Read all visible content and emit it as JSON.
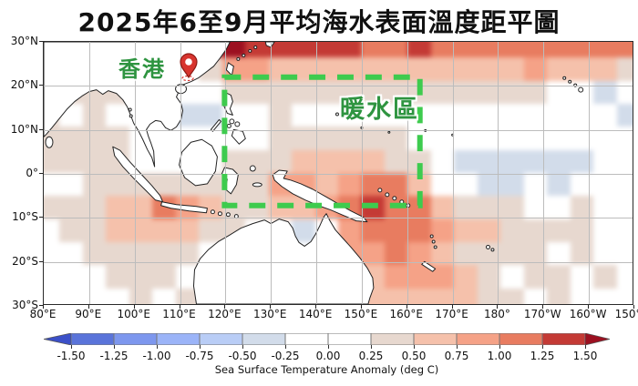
{
  "title": "2025年6至9月平均海水表面溫度距平圖",
  "annotations": {
    "hong_kong_label": "香港",
    "warm_area_label": "暖水區"
  },
  "colors": {
    "scale": [
      "#3b50c8",
      "#5a74da",
      "#7d97ee",
      "#9bb4f8",
      "#b9cdf6",
      "#d2dcea",
      "#ffffff",
      "#ffffff",
      "#e7d8cf",
      "#f5c1ab",
      "#f5a287",
      "#e87c60",
      "#c43a35",
      "#9c1020"
    ],
    "grid_line": "#bcbcbc",
    "land_fill": "#ffffff",
    "coastline": "#222222",
    "annotation_green": "#2e9440",
    "box_green": "#3ecb4e",
    "pin_red": "#d7342e"
  },
  "colorbar": {
    "tick_labels": [
      "-1.50",
      "-1.25",
      "-1.00",
      "-0.75",
      "-0.50",
      "-0.25",
      "0.00",
      "0.25",
      "0.50",
      "0.75",
      "1.00",
      "1.25",
      "1.50"
    ],
    "label": "Sea Surface Temperature Anomaly (deg C)"
  },
  "chart_data": {
    "type": "heatmap",
    "title": "2025年6至9月平均海水表面溫度距平圖",
    "units": "deg C",
    "colorbar_label": "Sea Surface Temperature Anomaly (deg C)",
    "lon_range_deg_east": [
      80,
      210
    ],
    "lat_range": [
      -30,
      30
    ],
    "lon_tick_labels": [
      "80°E",
      "90°E",
      "100°E",
      "110°E",
      "120°E",
      "130°E",
      "140°E",
      "150°E",
      "160°E",
      "170°E",
      "180°",
      "170°W",
      "160°W",
      "150°W"
    ],
    "lat_tick_labels": [
      "30°N",
      "20°N",
      "10°N",
      "0°",
      "10°S",
      "20°S",
      "30°S"
    ],
    "levels": [
      -1.5,
      -1.25,
      -1.0,
      -0.75,
      -0.5,
      -0.25,
      0,
      0.25,
      0.5,
      0.75,
      1.0,
      1.25,
      1.5
    ],
    "colorbar_range": [
      -1.5,
      1.5
    ],
    "grid_on": true,
    "cell_size_deg": 5,
    "grid_rows_north_to_south": [
      [
        0.3,
        0.3,
        0.3,
        0.4,
        0.5,
        0.6,
        0.9,
        1.3,
        1.6,
        1.45,
        1.35,
        1.3,
        1.3,
        1.25,
        1.2,
        1.2,
        1.3,
        1.2,
        1.2,
        1.15,
        1.2,
        1.1,
        1.2,
        1.1,
        1.0,
        1.1
      ],
      [
        0.4,
        0.4,
        0.4,
        0.4,
        0.3,
        0.2,
        0.1,
        0.3,
        0.9,
        0.8,
        0.7,
        0.6,
        0.6,
        0.5,
        0.5,
        0.6,
        0.5,
        0.6,
        0.7,
        0.6,
        0.7,
        0.8,
        0.7,
        0.6,
        0.5,
        0.4
      ],
      [
        0.3,
        0.3,
        0.4,
        0.3,
        0.2,
        0.1,
        0.0,
        -0.1,
        0.3,
        0.4,
        0.4,
        0.3,
        0.3,
        0.3,
        0.3,
        0.3,
        0.3,
        0.4,
        0.3,
        0.3,
        0.3,
        0.4,
        0.2,
        0.1,
        -0.3,
        0.0
      ],
      [
        0.3,
        0.2,
        0.3,
        0.2,
        0.1,
        0.0,
        -0.4,
        -0.3,
        0.1,
        0.2,
        0.3,
        0.2,
        0.2,
        0.2,
        0.2,
        0.1,
        0.2,
        0.2,
        0.1,
        0.1,
        0.1,
        0.1,
        0.0,
        -0.2,
        -0.1,
        -0.3
      ],
      [
        0.4,
        0.3,
        0.3,
        0.3,
        0.2,
        0.1,
        0.1,
        0.0,
        0.1,
        0.2,
        0.3,
        0.3,
        0.4,
        0.4,
        0.3,
        0.3,
        0.2,
        0.2,
        0.1,
        0.0,
        0.0,
        0.1,
        0.1,
        0.0,
        0.1,
        0.1
      ],
      [
        0.4,
        0.4,
        0.3,
        0.3,
        0.2,
        0.2,
        0.2,
        0.2,
        0.3,
        0.3,
        0.4,
        0.5,
        0.5,
        0.6,
        0.5,
        0.4,
        0.3,
        0.0,
        -0.4,
        -0.4,
        -0.4,
        -0.3,
        -0.4,
        -0.3,
        0.0,
        -0.1
      ],
      [
        0.2,
        0.2,
        0.3,
        0.3,
        0.3,
        0.4,
        0.3,
        0.3,
        0.4,
        0.4,
        0.9,
        0.8,
        0.7,
        0.9,
        1.0,
        1.0,
        0.7,
        0.2,
        -0.2,
        -0.3,
        -0.3,
        -0.2,
        -0.3,
        -0.2,
        0.0,
        0.0
      ],
      [
        0.3,
        0.4,
        0.4,
        0.5,
        0.7,
        1.0,
        0.8,
        0.5,
        0.4,
        0.4,
        0.5,
        0.6,
        0.8,
        1.2,
        1.3,
        1.2,
        1.0,
        0.7,
        0.4,
        0.3,
        0.3,
        0.2,
        0.2,
        0.3,
        0.2,
        0.1
      ],
      [
        0.2,
        0.3,
        0.4,
        0.5,
        0.6,
        0.6,
        0.5,
        0.4,
        0.3,
        0.2,
        0.1,
        -0.3,
        0.2,
        0.9,
        1.1,
        1.0,
        1.0,
        0.9,
        0.7,
        0.5,
        0.4,
        0.3,
        0.3,
        0.3,
        0.2,
        0.2
      ],
      [
        0.1,
        0.2,
        0.3,
        0.3,
        0.4,
        0.4,
        0.3,
        0.2,
        0.1,
        0.1,
        0.1,
        0.1,
        0.1,
        0.8,
        0.9,
        1.0,
        0.9,
        0.7,
        0.4,
        0.3,
        0.4,
        0.3,
        0.2,
        0.3,
        0.2,
        0.1
      ],
      [
        0.1,
        0.1,
        0.2,
        0.3,
        0.3,
        0.3,
        0.2,
        0.1,
        0.1,
        0.1,
        0.1,
        0.1,
        0.1,
        0.1,
        0.7,
        0.8,
        0.9,
        0.8,
        0.6,
        0.3,
        0.2,
        0.3,
        0.4,
        0.2,
        0.3,
        0.1
      ],
      [
        0.2,
        0.1,
        0.2,
        0.2,
        0.3,
        0.2,
        0.3,
        0.1,
        0.1,
        0.1,
        0.1,
        0.1,
        0.1,
        0.1,
        0.5,
        0.6,
        0.7,
        0.6,
        0.5,
        0.4,
        0.3,
        0.2,
        0.3,
        0.1,
        -0.1,
        0.2
      ]
    ],
    "highlight_box": {
      "label": "暖水區",
      "lon_min_deg_east": 120,
      "lon_max_deg_east": 163,
      "lat_min": -7.5,
      "lat_max": 22
    },
    "point_marker": {
      "label": "香港",
      "lon_deg_east": 114.2,
      "lat": 22.3
    }
  }
}
